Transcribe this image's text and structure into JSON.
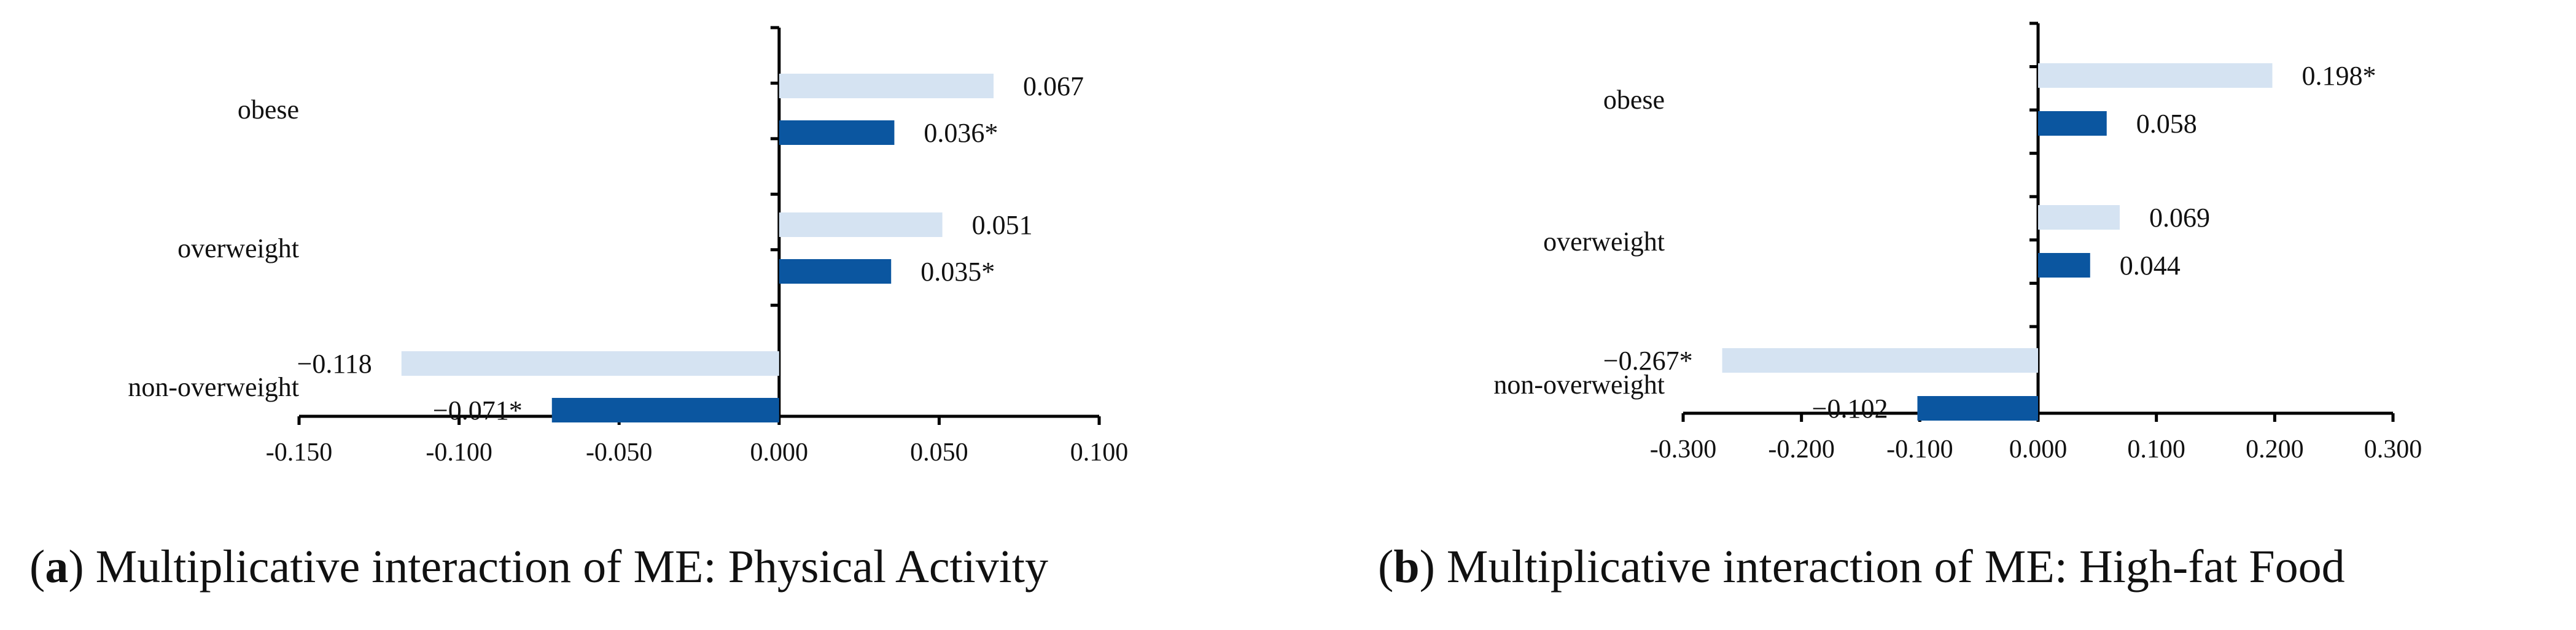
{
  "colors": {
    "light": "#d5e3f2",
    "dark": "#0b56a0",
    "axis": "#000000",
    "text": "#111111"
  },
  "chart_data": [
    {
      "type": "bar",
      "orientation": "horizontal",
      "title": "",
      "xlabel": "",
      "ylabel": "",
      "categories": [
        "obese",
        "overweight",
        "non-overweight"
      ],
      "series": [
        {
          "values": [
            0.067,
            0.051,
            -0.118
          ],
          "labels": [
            "0.067",
            "0.051",
            "−0.118"
          ],
          "color": "light"
        },
        {
          "values": [
            0.036,
            0.035,
            -0.071
          ],
          "labels": [
            "0.036*",
            "0.035*",
            "−0.071*"
          ],
          "color": "dark"
        }
      ],
      "xlim": [
        -0.15,
        0.1
      ],
      "xticks": [
        -0.15,
        -0.1,
        -0.05,
        0.0,
        0.05,
        0.1
      ],
      "xtick_labels": [
        "-0.150",
        "-0.100",
        "-0.050",
        "0.000",
        "0.050",
        "0.100"
      ],
      "grid": false,
      "legend": "none"
    },
    {
      "type": "bar",
      "orientation": "horizontal",
      "title": "",
      "xlabel": "",
      "ylabel": "",
      "categories": [
        "obese",
        "overweight",
        "non-overweight"
      ],
      "series": [
        {
          "values": [
            0.198,
            0.069,
            -0.267
          ],
          "labels": [
            "0.198*",
            "0.069",
            "−0.267*"
          ],
          "color": "light"
        },
        {
          "values": [
            0.058,
            0.044,
            -0.102
          ],
          "labels": [
            "0.058",
            "0.044",
            "−0.102"
          ],
          "color": "dark"
        }
      ],
      "xlim": [
        -0.3,
        0.3
      ],
      "xticks": [
        -0.3,
        -0.2,
        -0.1,
        0.0,
        0.1,
        0.2,
        0.3
      ],
      "xtick_labels": [
        "-0.300",
        "-0.200",
        "-0.100",
        "0.000",
        "0.100",
        "0.200",
        "0.300"
      ],
      "grid": false,
      "legend": "none"
    }
  ],
  "captions": [
    {
      "letter": "a",
      "open": "(",
      "close": ")",
      "text": " Multiplicative interaction of ME: Physical Activity"
    },
    {
      "letter": "b",
      "open": "(",
      "close": ")",
      "text": " Multiplicative interaction of ME: High-fat Food"
    }
  ]
}
